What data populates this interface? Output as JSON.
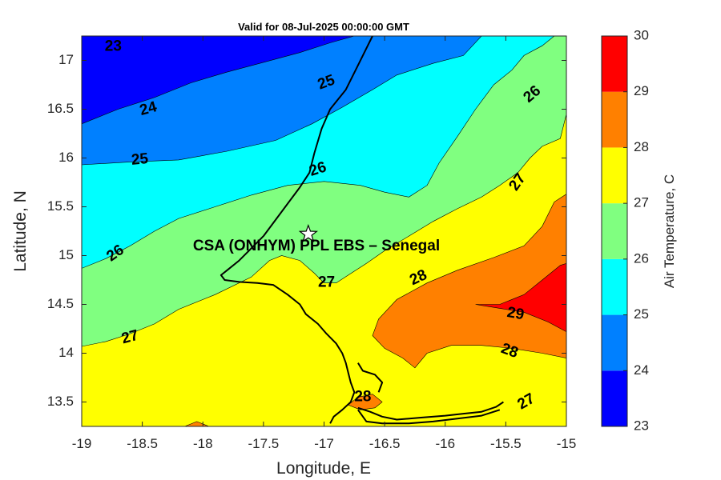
{
  "chart_data": {
    "type": "contour",
    "title": "Valid for 08-Jul-2025 00:00:00 GMT",
    "xlabel": "Longitude, E",
    "ylabel": "Latitude, N",
    "xlim": [
      -19,
      -15
    ],
    "ylim": [
      13.25,
      17.25
    ],
    "xticks": [
      "-19",
      "-18.5",
      "-18",
      "-17.5",
      "-17",
      "-16.5",
      "-16",
      "-15.5",
      "-15"
    ],
    "yticks": [
      "13.5",
      "14",
      "14.5",
      "15",
      "15.5",
      "16",
      "16.5",
      "17"
    ],
    "colorbar": {
      "label": "Air Temperature, C",
      "levels": [
        23,
        24,
        25,
        26,
        27,
        28,
        29,
        30
      ],
      "tick_labels": [
        "23",
        "24",
        "25",
        "26",
        "27",
        "28",
        "29",
        "30"
      ],
      "colors": [
        "#0000ff",
        "#0080ff",
        "#00ffff",
        "#80ff80",
        "#ffff00",
        "#ff8000",
        "#ff0000",
        "#800000"
      ]
    },
    "bands": [
      {
        "level": 23,
        "color": "#0000ff",
        "boundary": [
          [
            -19,
            16.35
          ],
          [
            -18.7,
            16.5
          ],
          [
            -18.4,
            16.62
          ],
          [
            -18.1,
            16.77
          ],
          [
            -17.8,
            16.88
          ],
          [
            -17.5,
            16.98
          ],
          [
            -17.2,
            17.08
          ],
          [
            -16.95,
            17.18
          ],
          [
            -16.75,
            17.25
          ],
          [
            -19,
            17.25
          ]
        ]
      },
      {
        "level": 24,
        "color": "#0080ff",
        "boundary": [
          [
            -19,
            15.93
          ],
          [
            -18.6,
            15.96
          ],
          [
            -18.2,
            15.98
          ],
          [
            -17.8,
            16.07
          ],
          [
            -17.4,
            16.18
          ],
          [
            -17.1,
            16.35
          ],
          [
            -16.85,
            16.52
          ],
          [
            -16.6,
            16.7
          ],
          [
            -16.4,
            16.85
          ],
          [
            -16.1,
            16.97
          ],
          [
            -15.85,
            17.05
          ],
          [
            -15.7,
            17.25
          ],
          [
            -19,
            17.25
          ]
        ]
      },
      {
        "level": 25,
        "color": "#00ffff",
        "boundary": [
          [
            -19,
            14.87
          ],
          [
            -18.8,
            14.97
          ],
          [
            -18.6,
            15.1
          ],
          [
            -18.4,
            15.25
          ],
          [
            -18.2,
            15.38
          ],
          [
            -17.9,
            15.5
          ],
          [
            -17.6,
            15.62
          ],
          [
            -17.3,
            15.72
          ],
          [
            -17.0,
            15.76
          ],
          [
            -16.7,
            15.72
          ],
          [
            -16.5,
            15.65
          ],
          [
            -16.3,
            15.6
          ],
          [
            -16.15,
            15.72
          ],
          [
            -16.05,
            15.95
          ],
          [
            -15.9,
            16.22
          ],
          [
            -15.75,
            16.5
          ],
          [
            -15.6,
            16.75
          ],
          [
            -15.45,
            16.9
          ],
          [
            -15.35,
            17.05
          ],
          [
            -15.2,
            17.15
          ],
          [
            -15.1,
            17.25
          ],
          [
            -19,
            17.25
          ]
        ]
      },
      {
        "level": 26,
        "color": "#80ff80",
        "boundary": [
          [
            -19,
            14.07
          ],
          [
            -18.8,
            14.12
          ],
          [
            -18.6,
            14.2
          ],
          [
            -18.4,
            14.3
          ],
          [
            -18.2,
            14.45
          ],
          [
            -17.9,
            14.6
          ],
          [
            -17.6,
            14.78
          ],
          [
            -17.45,
            14.95
          ],
          [
            -17.35,
            15.0
          ],
          [
            -17.2,
            14.95
          ],
          [
            -17.08,
            14.82
          ],
          [
            -17.0,
            14.72
          ],
          [
            -16.9,
            14.72
          ],
          [
            -16.8,
            14.8
          ],
          [
            -16.65,
            14.92
          ],
          [
            -16.5,
            15.05
          ],
          [
            -16.3,
            15.2
          ],
          [
            -16.1,
            15.35
          ],
          [
            -15.9,
            15.48
          ],
          [
            -15.7,
            15.6
          ],
          [
            -15.55,
            15.72
          ],
          [
            -15.4,
            15.85
          ],
          [
            -15.3,
            16.0
          ],
          [
            -15.2,
            16.12
          ],
          [
            -15.05,
            16.2
          ],
          [
            -15.0,
            16.45
          ],
          [
            -15.0,
            17.25
          ],
          [
            -19,
            17.25
          ]
        ]
      },
      {
        "level": 27,
        "color": "#ffff00",
        "boundary": [
          [
            -19,
            13.25
          ],
          [
            -15,
            13.25
          ],
          [
            -15,
            17.25
          ],
          [
            -19,
            17.25
          ]
        ]
      },
      {
        "level": 28,
        "color": "#ff8000",
        "boundary": [
          [
            -16.8,
            13.47
          ],
          [
            -16.72,
            13.55
          ],
          [
            -16.6,
            13.58
          ],
          [
            -16.52,
            13.5
          ],
          [
            -16.58,
            13.44
          ],
          [
            -16.7,
            13.42
          ]
        ]
      },
      {
        "level": 28,
        "color": "#ff8000",
        "boundary": [
          [
            -16.25,
            13.85
          ],
          [
            -16.35,
            13.95
          ],
          [
            -16.5,
            14.05
          ],
          [
            -16.6,
            14.18
          ],
          [
            -16.55,
            14.35
          ],
          [
            -16.4,
            14.55
          ],
          [
            -16.15,
            14.72
          ],
          [
            -15.9,
            14.85
          ],
          [
            -15.6,
            14.98
          ],
          [
            -15.35,
            15.1
          ],
          [
            -15.2,
            15.3
          ],
          [
            -15.1,
            15.55
          ],
          [
            -15.0,
            15.63
          ],
          [
            -15.0,
            13.95
          ],
          [
            -15.2,
            14.0
          ],
          [
            -15.45,
            14.05
          ],
          [
            -15.7,
            14.08
          ],
          [
            -15.95,
            14.08
          ],
          [
            -16.15,
            14.0
          ]
        ]
      },
      {
        "level": 28,
        "color": "#ff8000",
        "boundary": [
          [
            -18.15,
            13.25
          ],
          [
            -18.05,
            13.3
          ],
          [
            -17.95,
            13.25
          ]
        ]
      },
      {
        "level": 29,
        "color": "#ff0000",
        "boundary": [
          [
            -15.75,
            14.5
          ],
          [
            -15.55,
            14.5
          ],
          [
            -15.35,
            14.6
          ],
          [
            -15.2,
            14.75
          ],
          [
            -15.05,
            14.9
          ],
          [
            -15.0,
            14.92
          ],
          [
            -15.0,
            14.22
          ],
          [
            -15.15,
            14.32
          ],
          [
            -15.35,
            14.42
          ],
          [
            -15.55,
            14.46
          ]
        ]
      }
    ],
    "contour_labels": [
      {
        "text": "23",
        "lon": -18.74,
        "lat": 17.14,
        "angle": 0
      },
      {
        "text": "24",
        "lon": -18.45,
        "lat": 16.5,
        "angle": -15
      },
      {
        "text": "25",
        "lon": -18.52,
        "lat": 15.98,
        "angle": -5
      },
      {
        "text": "25",
        "lon": -16.98,
        "lat": 16.77,
        "angle": -20
      },
      {
        "text": "26",
        "lon": -18.72,
        "lat": 15.02,
        "angle": -35
      },
      {
        "text": "26",
        "lon": -17.05,
        "lat": 15.88,
        "angle": -18
      },
      {
        "text": "26",
        "lon": -15.28,
        "lat": 16.65,
        "angle": -40
      },
      {
        "text": "27",
        "lon": -18.6,
        "lat": 14.16,
        "angle": -15
      },
      {
        "text": "27",
        "lon": -16.98,
        "lat": 14.72,
        "angle": 0
      },
      {
        "text": "27",
        "lon": -15.4,
        "lat": 15.75,
        "angle": -55
      },
      {
        "text": "27",
        "lon": -15.33,
        "lat": 13.5,
        "angle": -30
      },
      {
        "text": "28",
        "lon": -16.22,
        "lat": 14.77,
        "angle": -25
      },
      {
        "text": "28",
        "lon": -15.47,
        "lat": 14.02,
        "angle": 20
      },
      {
        "text": "28",
        "lon": -16.68,
        "lat": 13.55,
        "angle": 0
      },
      {
        "text": "29",
        "lon": -15.42,
        "lat": 14.4,
        "angle": 10
      }
    ],
    "site": {
      "label": "CSA (ONHYM) PPL EBS  – Senegal",
      "lon": -17.13,
      "lat": 15.22
    },
    "border": [
      [
        [
          -16.6,
          17.25
        ],
        [
          -16.72,
          16.95
        ],
        [
          -16.82,
          16.7
        ],
        [
          -16.95,
          16.5
        ],
        [
          -17.02,
          16.3
        ],
        [
          -17.08,
          16.05
        ],
        [
          -17.12,
          15.85
        ],
        [
          -17.2,
          15.7
        ],
        [
          -17.35,
          15.45
        ],
        [
          -17.5,
          15.2
        ],
        [
          -17.62,
          15.05
        ],
        [
          -17.7,
          14.95
        ],
        [
          -17.8,
          14.85
        ],
        [
          -17.85,
          14.8
        ],
        [
          -17.82,
          14.75
        ],
        [
          -17.7,
          14.73
        ],
        [
          -17.55,
          14.72
        ],
        [
          -17.42,
          14.7
        ],
        [
          -17.3,
          14.6
        ],
        [
          -17.2,
          14.5
        ],
        [
          -17.15,
          14.4
        ],
        [
          -17.05,
          14.3
        ],
        [
          -16.98,
          14.2
        ],
        [
          -16.9,
          14.1
        ],
        [
          -16.85,
          14.0
        ],
        [
          -16.82,
          13.9
        ],
        [
          -16.8,
          13.8
        ],
        [
          -16.78,
          13.7
        ],
        [
          -16.75,
          13.6
        ],
        [
          -16.78,
          13.5
        ],
        [
          -16.85,
          13.42
        ],
        [
          -16.92,
          13.35
        ],
        [
          -16.95,
          13.28
        ]
      ],
      [
        [
          -16.72,
          13.9
        ],
        [
          -16.68,
          13.82
        ],
        [
          -16.58,
          13.78
        ],
        [
          -16.52,
          13.7
        ],
        [
          -16.55,
          13.6
        ]
      ],
      [
        [
          -16.72,
          13.44
        ],
        [
          -16.62,
          13.4
        ],
        [
          -16.52,
          13.35
        ],
        [
          -16.4,
          13.32
        ],
        [
          -16.2,
          13.34
        ],
        [
          -16.0,
          13.36
        ],
        [
          -15.85,
          13.38
        ],
        [
          -15.7,
          13.4
        ],
        [
          -15.58,
          13.45
        ],
        [
          -15.52,
          13.5
        ]
      ],
      [
        [
          -16.72,
          13.42
        ],
        [
          -16.65,
          13.3
        ],
        [
          -16.52,
          13.28
        ],
        [
          -16.3,
          13.28
        ],
        [
          -16.1,
          13.3
        ],
        [
          -15.9,
          13.33
        ],
        [
          -15.7,
          13.36
        ],
        [
          -15.55,
          13.42
        ]
      ]
    ]
  }
}
